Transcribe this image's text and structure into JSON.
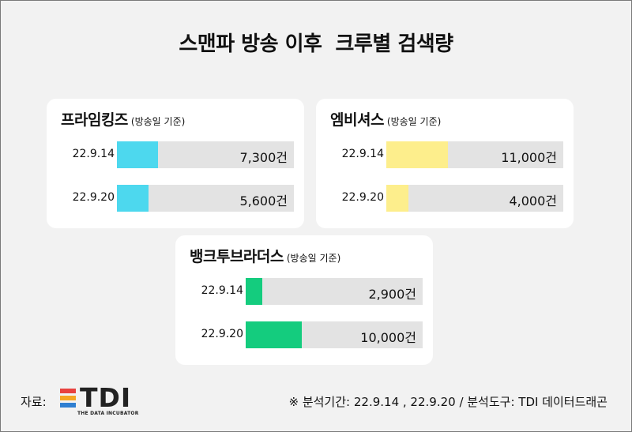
{
  "title": "스맨파 방송 이후  크루별 검색량",
  "note": "(방송일 기준)",
  "value_suffix": "건",
  "source_label": "자료:",
  "logo": {
    "text": "TDI",
    "subtitle": "THE DATA INCUBATOR"
  },
  "footnote": "※ 분석기간: 22.9.14 , 22.9.20 / 분석도구: TDI 데이터드래곤",
  "chart_data": [
    {
      "type": "bar",
      "orientation": "horizontal",
      "title": "프라임킹즈",
      "categories": [
        "22.9.14",
        "22.9.20"
      ],
      "values": [
        7300,
        5600
      ],
      "value_labels": [
        "7,300건",
        "5,600건"
      ],
      "color": "#4dd8ee"
    },
    {
      "type": "bar",
      "orientation": "horizontal",
      "title": "엠비셔스",
      "categories": [
        "22.9.14",
        "22.9.20"
      ],
      "values": [
        11000,
        4000
      ],
      "value_labels": [
        "11,000건",
        "4,000건"
      ],
      "color": "#fdee8c"
    },
    {
      "type": "bar",
      "orientation": "horizontal",
      "title": "뱅크투브라더스",
      "categories": [
        "22.9.14",
        "22.9.20"
      ],
      "values": [
        2900,
        10000
      ],
      "value_labels": [
        "2,900건",
        "10,000건"
      ],
      "color": "#14cc7e"
    }
  ]
}
